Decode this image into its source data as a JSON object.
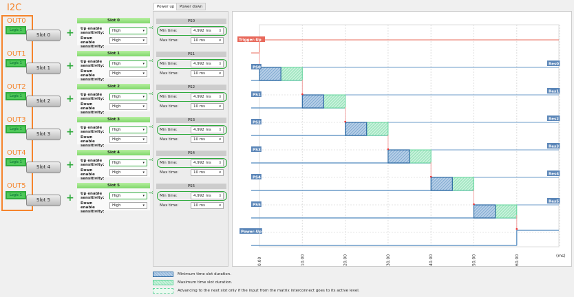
{
  "title": "I2C",
  "tabs": [
    {
      "label": "Power up",
      "active": true
    },
    {
      "label": "Power down",
      "active": false
    }
  ],
  "outputs": [
    {
      "out": "OUT0",
      "chip": "Logic 1",
      "slot_button": "Slot 0",
      "slot_title": "Slot 0",
      "up_label": "Up enable sensitivity:",
      "up_value": "High",
      "down_label": "Down enable sensitivity:",
      "down_value": "High",
      "ps_title": "PS0",
      "min_label": "Min time:",
      "min_value": "4.992 ms",
      "max_label": "Max time:",
      "max_value": "10 ms"
    },
    {
      "out": "OUT1",
      "chip": "Logic 1",
      "slot_button": "Slot 1",
      "slot_title": "Slot 1",
      "up_label": "Up enable sensitivity:",
      "up_value": "High",
      "down_label": "Down enable sensitivity:",
      "down_value": "High",
      "ps_title": "PS1",
      "min_label": "Min time:",
      "min_value": "4.992 ms",
      "max_label": "Max time:",
      "max_value": "10 ms"
    },
    {
      "out": "OUT2",
      "chip": "Logic 1",
      "slot_button": "Slot 2",
      "slot_title": "Slot 2",
      "up_label": "Up enable sensitivity:",
      "up_value": "High",
      "down_label": "Down enable sensitivity:",
      "down_value": "High",
      "ps_title": "PS2",
      "min_label": "Min time:",
      "min_value": "4.992 ms",
      "max_label": "Max time:",
      "max_value": "10 ms"
    },
    {
      "out": "OUT3",
      "chip": "Logic 1",
      "slot_button": "Slot 3",
      "slot_title": "Slot 3",
      "up_label": "Up enable sensitivity:",
      "up_value": "High",
      "down_label": "Down enable sensitivity:",
      "down_value": "High",
      "ps_title": "PS3",
      "min_label": "Min time:",
      "min_value": "4.992 ms",
      "max_label": "Max time:",
      "max_value": "10 ms"
    },
    {
      "out": "OUT4",
      "chip": "Logic 1",
      "slot_button": "Slot 4",
      "slot_title": "Slot 4",
      "up_label": "Up enable sensitivity:",
      "up_value": "High",
      "down_label": "Down enable sensitivity:",
      "down_value": "High",
      "ps_title": "PS4",
      "min_label": "Min time:",
      "min_value": "4.992 ms",
      "max_label": "Max time:",
      "max_value": "10 ms"
    },
    {
      "out": "OUT5",
      "chip": "Logic 1",
      "slot_button": "Slot 5",
      "slot_title": "Slot 5",
      "up_label": "Up enable sensitivity:",
      "up_value": "High",
      "down_label": "Down enable sensitivity:",
      "down_value": "High",
      "ps_title": "PS5",
      "min_label": "Min time:",
      "min_value": "4.992 ms",
      "max_label": "Max time:",
      "max_value": "10 ms"
    }
  ],
  "chart_data": {
    "type": "timing",
    "xunit": "(ms)",
    "xticks": [
      "0.00",
      "10.00",
      "20.00",
      "30.00",
      "40.00",
      "50.00",
      "60.00"
    ],
    "xlim": [
      0,
      70
    ],
    "trigger": {
      "label": "Trigger-Up",
      "time": 0,
      "color": "#e8685a"
    },
    "slots": [
      {
        "label": "PS0",
        "res": "Res0",
        "start": 0,
        "min": 4.992,
        "max": 10
      },
      {
        "label": "PS1",
        "res": "Res1",
        "start": 10,
        "min": 4.992,
        "max": 10
      },
      {
        "label": "PS2",
        "res": "Res2",
        "start": 20,
        "min": 4.992,
        "max": 10
      },
      {
        "label": "PS3",
        "res": "Res3",
        "start": 30,
        "min": 4.992,
        "max": 10
      },
      {
        "label": "PS4",
        "res": "Res4",
        "start": 40,
        "min": 4.992,
        "max": 10
      },
      {
        "label": "PS5",
        "res": "Res5",
        "start": 50,
        "min": 4.992,
        "max": 10
      }
    ],
    "final": {
      "label": "Power-Up",
      "time": 60
    },
    "colors": {
      "min": "#2d6aa3",
      "max": "#5fd39a",
      "line": "#6b9bc9"
    }
  },
  "legend": [
    {
      "text": "Minimum time slot duration."
    },
    {
      "text": "Maximum time slot duration."
    },
    {
      "text": "Advancing to the next slot only if the input from the matrix interconnect goes to its active level."
    }
  ]
}
